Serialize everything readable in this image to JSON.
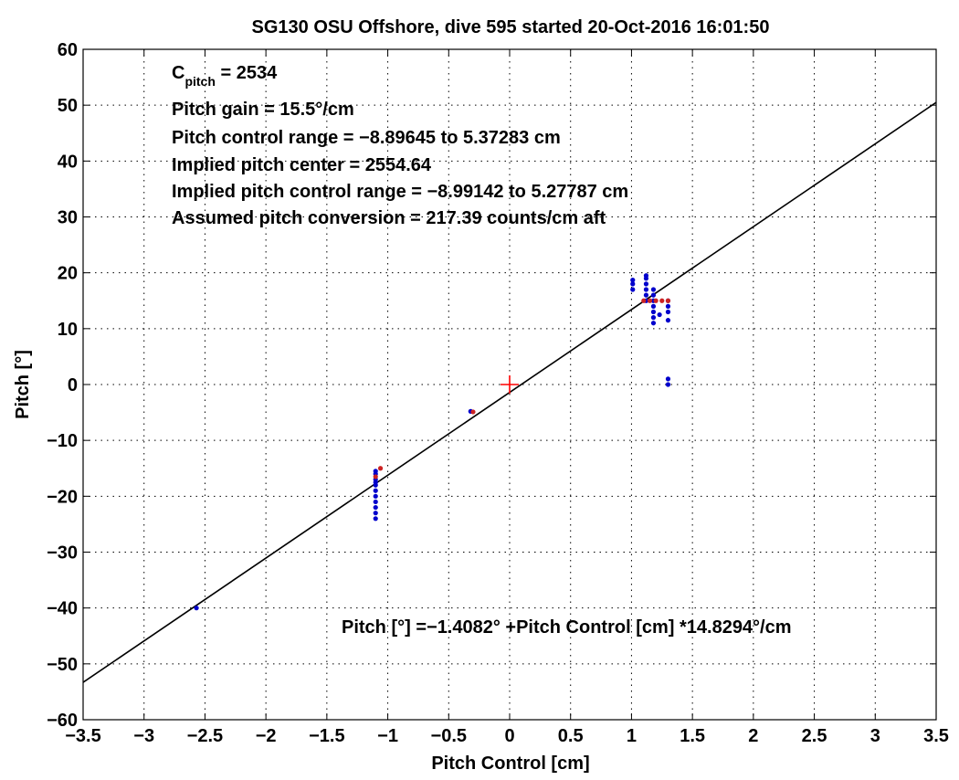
{
  "chart_data": {
    "type": "scatter",
    "title": "SG130 OSU Offshore, dive 595 started 20-Oct-2016 16:01:50",
    "xlabel": "Pitch Control [cm]",
    "ylabel": "Pitch [°]",
    "xlim": [
      -3.5,
      3.5
    ],
    "ylim": [
      -60,
      60
    ],
    "xticks": [
      -3.5,
      -3,
      -2.5,
      -2,
      -1.5,
      -1,
      -0.5,
      0,
      0.5,
      1,
      1.5,
      2,
      2.5,
      3,
      3.5
    ],
    "xtick_labels": [
      "−3.5",
      "−3",
      "−2.5",
      "−2",
      "−1.5",
      "−1",
      "−0.5",
      "0",
      "0.5",
      "1",
      "1.5",
      "2",
      "2.5",
      "3",
      "3.5"
    ],
    "yticks": [
      -60,
      -50,
      -40,
      -30,
      -20,
      -10,
      0,
      10,
      20,
      30,
      40,
      50,
      60
    ],
    "ytick_labels": [
      "−60",
      "−50",
      "−40",
      "−30",
      "−20",
      "−10",
      "0",
      "10",
      "20",
      "30",
      "40",
      "50",
      "60"
    ],
    "grid": true,
    "annotations": {
      "cpitch_label": "C",
      "cpitch_sub": "pitch",
      "cpitch_value": " = 2534",
      "gain": "Pitch gain = 15.5°/cm",
      "control_range": "Pitch control range = −8.89645 to 5.37283 cm",
      "center": "Implied pitch center = 2554.64",
      "implied_range": "Implied pitch control range = −8.99142 to 5.27787 cm",
      "conversion": "Assumed pitch conversion = 217.39 counts/cm aft",
      "fit_equation": "Pitch [°] =−1.4082° +Pitch Control [cm] *14.8294°/cm"
    },
    "fit_line": {
      "intercept": -1.4082,
      "slope": 14.8294
    },
    "center_marker": {
      "x": 0,
      "y": 0,
      "color": "#ff0000"
    },
    "colors": {
      "observed": "#0000cc",
      "fit_points": "#cc2222",
      "line": "#000000",
      "marker": "#ff0000"
    },
    "series": [
      {
        "color": "#0000cc",
        "x": [
          -2.57,
          -1.1,
          -1.1,
          -1.1,
          -1.1,
          -1.1,
          -1.1,
          -1.1,
          -1.1,
          -1.1,
          -1.1,
          -1.1,
          -0.32,
          1.01,
          1.01,
          1.01,
          1.12,
          1.12,
          1.12,
          1.12,
          1.12,
          1.12,
          1.18,
          1.18,
          1.18,
          1.18,
          1.18,
          1.18,
          1.18,
          1.23,
          1.3,
          1.3,
          1.3,
          1.3,
          1.3,
          1.3
        ],
        "y": [
          -40,
          -16,
          -17,
          -18,
          -19,
          -20,
          -21,
          -22,
          -23,
          -24,
          -15.5,
          -17.5,
          -4.8,
          17,
          18,
          18.7,
          15,
          16,
          17,
          18,
          19,
          19.5,
          11,
          12,
          13,
          14,
          15,
          16,
          17,
          12.5,
          11.5,
          13,
          14,
          15,
          0,
          1
        ]
      },
      {
        "color": "#cc2222",
        "x": [
          -1.06,
          -1.1,
          -0.3,
          1.1,
          1.15,
          1.2,
          1.25,
          1.3
        ],
        "y": [
          -15,
          -16.5,
          -4.9,
          15,
          15,
          15,
          15,
          15
        ]
      }
    ]
  }
}
